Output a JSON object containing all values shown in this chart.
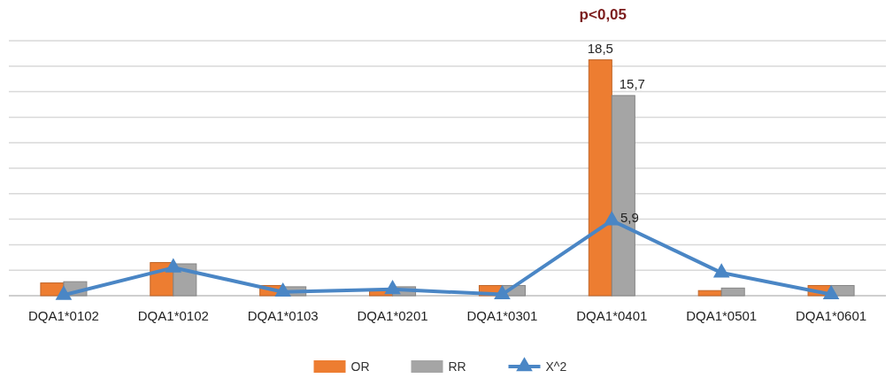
{
  "chart_data": {
    "type": "bar",
    "categories": [
      "DQA1*0102",
      "DQA1*0102",
      "DQA1*0103",
      "DQA1*0201",
      "DQA1*0301",
      "DQA1*0401",
      "DQA1*0501",
      "DQA1*0601"
    ],
    "series": [
      {
        "name": "OR",
        "color": "#ed7d31",
        "values": [
          1.0,
          2.6,
          0.8,
          0.4,
          0.8,
          18.5,
          0.4,
          0.8
        ],
        "value_labels": [
          null,
          null,
          null,
          null,
          null,
          "18,5",
          null,
          null
        ]
      },
      {
        "name": "RR",
        "color": "#a5a5a5",
        "values": [
          1.1,
          2.5,
          0.7,
          0.7,
          0.8,
          15.7,
          0.6,
          0.8
        ],
        "value_labels": [
          null,
          null,
          null,
          null,
          null,
          "15,7",
          null,
          null
        ]
      },
      {
        "name": "X^2",
        "type": "line",
        "color": "#4a86c5",
        "marker": "triangle",
        "values": [
          0.05,
          2.2,
          0.3,
          0.5,
          0.1,
          5.9,
          1.8,
          0.1
        ],
        "value_labels": [
          null,
          null,
          null,
          null,
          null,
          "5,9",
          null,
          null
        ]
      }
    ],
    "ylim": [
      0,
      20
    ],
    "yticks": [
      {
        "value": 0,
        "label": null
      },
      {
        "value": 2,
        "label": null
      },
      {
        "value": 4,
        "label": null
      },
      {
        "value": 6,
        "label": null
      },
      {
        "value": 8,
        "label": null
      },
      {
        "value": 10,
        "label": null
      },
      {
        "value": 12,
        "label": null
      },
      {
        "value": 14,
        "label": null
      },
      {
        "value": 16,
        "label": null
      },
      {
        "value": 18,
        "label": null
      },
      {
        "value": 20,
        "label": null
      }
    ],
    "grid": "y",
    "legend": "bottom",
    "tick_labels": "x",
    "annotations": [
      "p<0,05"
    ]
  }
}
